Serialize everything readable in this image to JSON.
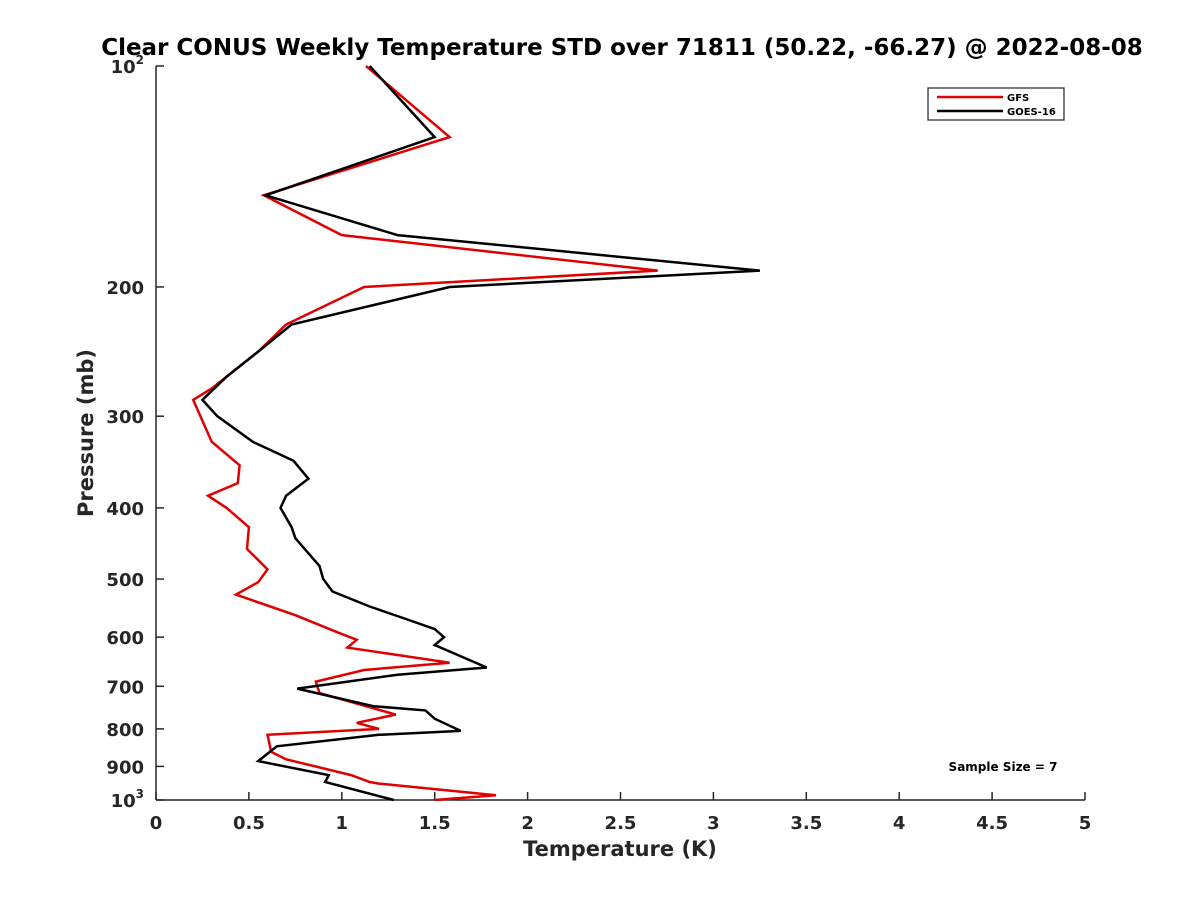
{
  "chart_data": {
    "type": "line",
    "title": "Clear CONUS Weekly Temperature STD over 71811 (50.22, -66.27) @ 2022-08-08",
    "xlabel": "Temperature (K)",
    "ylabel": "Pressure (mb)",
    "xlim": [
      0,
      5
    ],
    "ylim": [
      100,
      1000
    ],
    "y_scale": "log",
    "y_reversed": true,
    "grid": false,
    "legend_position": "top-right",
    "x_ticks": [
      "0",
      "0.5",
      "1",
      "1.5",
      "2",
      "2.5",
      "3",
      "3.5",
      "4",
      "4.5",
      "5"
    ],
    "y_ticks": [
      {
        "value": 100,
        "base": "10",
        "exp": "2"
      },
      {
        "value": 200,
        "label": "200"
      },
      {
        "value": 300,
        "label": "300"
      },
      {
        "value": 400,
        "label": "400"
      },
      {
        "value": 500,
        "label": "500"
      },
      {
        "value": 600,
        "label": "600"
      },
      {
        "value": 700,
        "label": "700"
      },
      {
        "value": 800,
        "label": "800"
      },
      {
        "value": 900,
        "label": "900"
      },
      {
        "value": 1000,
        "base": "10",
        "exp": "3"
      }
    ],
    "series": [
      {
        "name": "GFS",
        "color": "#e00000",
        "points": [
          [
            1.13,
            100
          ],
          [
            1.58,
            125
          ],
          [
            0.58,
            150
          ],
          [
            1.0,
            170
          ],
          [
            2.7,
            190
          ],
          [
            1.12,
            200
          ],
          [
            0.7,
            225
          ],
          [
            0.55,
            245
          ],
          [
            0.3,
            275
          ],
          [
            0.2,
            285
          ],
          [
            0.3,
            325
          ],
          [
            0.45,
            350
          ],
          [
            0.44,
            370
          ],
          [
            0.28,
            385
          ],
          [
            0.38,
            400
          ],
          [
            0.5,
            425
          ],
          [
            0.49,
            455
          ],
          [
            0.6,
            485
          ],
          [
            0.55,
            505
          ],
          [
            0.43,
            525
          ],
          [
            0.75,
            560
          ],
          [
            0.97,
            590
          ],
          [
            1.08,
            605
          ],
          [
            1.03,
            620
          ],
          [
            1.58,
            650
          ],
          [
            1.12,
            665
          ],
          [
            0.86,
            690
          ],
          [
            0.88,
            715
          ],
          [
            1.29,
            765
          ],
          [
            1.08,
            785
          ],
          [
            1.2,
            800
          ],
          [
            0.6,
            815
          ],
          [
            0.62,
            860
          ],
          [
            0.7,
            880
          ],
          [
            1.05,
            925
          ],
          [
            1.15,
            945
          ],
          [
            1.2,
            950
          ],
          [
            1.83,
            985
          ],
          [
            1.5,
            1000
          ]
        ]
      },
      {
        "name": "GOES-16",
        "color": "#000000",
        "points": [
          [
            1.15,
            100
          ],
          [
            1.5,
            125
          ],
          [
            0.59,
            150
          ],
          [
            1.3,
            170
          ],
          [
            3.25,
            190
          ],
          [
            1.58,
            200
          ],
          [
            0.73,
            225
          ],
          [
            0.55,
            245
          ],
          [
            0.38,
            265
          ],
          [
            0.25,
            285
          ],
          [
            0.33,
            300
          ],
          [
            0.52,
            325
          ],
          [
            0.74,
            345
          ],
          [
            0.82,
            365
          ],
          [
            0.7,
            385
          ],
          [
            0.67,
            400
          ],
          [
            0.73,
            425
          ],
          [
            0.75,
            440
          ],
          [
            0.88,
            480
          ],
          [
            0.9,
            500
          ],
          [
            0.95,
            520
          ],
          [
            1.15,
            545
          ],
          [
            1.33,
            565
          ],
          [
            1.5,
            585
          ],
          [
            1.55,
            600
          ],
          [
            1.5,
            615
          ],
          [
            1.78,
            660
          ],
          [
            1.3,
            675
          ],
          [
            0.76,
            705
          ],
          [
            1.17,
            745
          ],
          [
            1.45,
            755
          ],
          [
            1.5,
            775
          ],
          [
            1.64,
            805
          ],
          [
            1.2,
            815
          ],
          [
            0.65,
            845
          ],
          [
            0.55,
            885
          ],
          [
            0.93,
            925
          ],
          [
            0.91,
            945
          ],
          [
            1.28,
            1000
          ]
        ]
      }
    ],
    "annotations": [
      {
        "text": "Sample Size = 7"
      }
    ]
  }
}
